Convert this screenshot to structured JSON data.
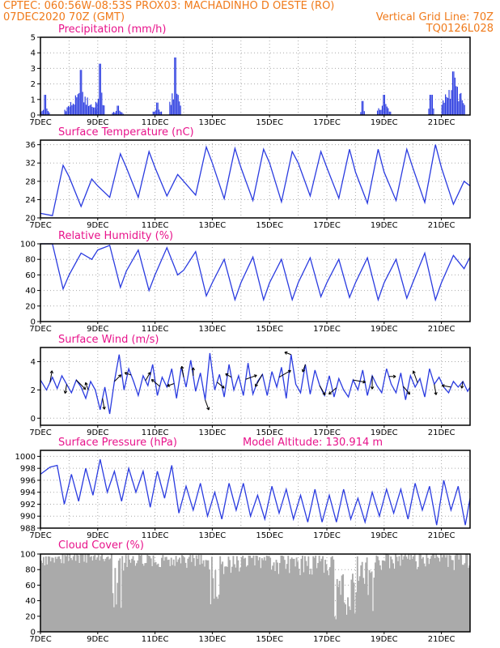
{
  "header": {
    "line1_left": "CPTEC:   060:56W-08:53S   PROX03: MACHADINHO D OESTE (RO)",
    "line2_left": "07DEC2020 70Z (GMT)",
    "line2_right": "Vertical Grid Line: 70Z",
    "line3_right": "TQ0126L028",
    "model_altitude": "Model Altitude: 130.914 m"
  },
  "colors": {
    "header": "#f07a1a",
    "title": "#e8138b",
    "line": "#2a3be0",
    "cloud": "#aaaaaa"
  },
  "chart_data": [
    {
      "id": "precip",
      "type": "bar",
      "title": "Precipitation (mm/h)",
      "ylim": [
        0,
        5
      ],
      "yticks": [
        0,
        1,
        2,
        3,
        4,
        5
      ],
      "x_ticks": [
        "7DEC",
        "9DEC",
        "11DEC",
        "13DEC",
        "15DEC",
        "17DEC",
        "19DEC",
        "21DEC"
      ],
      "x_unit": "hours since 7DEC 00Z",
      "xlim": [
        0,
        360
      ],
      "events": [
        {
          "x": [
            0,
            8
          ],
          "peak": 0.4,
          "max": 1.3
        },
        {
          "x": [
            20,
            48
          ],
          "peak": 1.0,
          "max": 2.9
        },
        {
          "x": [
            46,
            54
          ],
          "peak": 1.5,
          "max": 3.3
        },
        {
          "x": [
            60,
            70
          ],
          "peak": 0.3,
          "max": 0.6
        },
        {
          "x": [
            94,
            102
          ],
          "peak": 0.4,
          "max": 0.8
        },
        {
          "x": [
            108,
            118
          ],
          "peak": 1.6,
          "max": 3.7
        },
        {
          "x": [
            268,
            272
          ],
          "peak": 0.6,
          "max": 0.9
        },
        {
          "x": [
            282,
            294
          ],
          "peak": 0.6,
          "max": 1.3
        },
        {
          "x": [
            325,
            330
          ],
          "peak": 0.8,
          "max": 1.3
        },
        {
          "x": [
            336,
            356
          ],
          "peak": 1.7,
          "max": 2.8
        }
      ]
    },
    {
      "id": "temp",
      "type": "line",
      "title": "Surface Temperature (nC)",
      "ylim": [
        20,
        37
      ],
      "yticks": [
        20,
        24,
        28,
        32,
        36
      ],
      "x_ticks": [
        "7DEC",
        "9DEC",
        "11DEC",
        "13DEC",
        "15DEC",
        "17DEC",
        "19DEC",
        "21DEC"
      ],
      "xlim": [
        0,
        360
      ],
      "x": [
        0,
        10,
        19,
        24,
        34,
        43,
        48,
        58,
        67,
        72,
        82,
        91,
        96,
        106,
        115,
        120,
        130,
        139,
        144,
        154,
        163,
        168,
        178,
        187,
        192,
        202,
        211,
        216,
        226,
        235,
        240,
        250,
        259,
        264,
        274,
        283,
        288,
        298,
        307,
        312,
        322,
        331,
        336,
        346,
        355,
        360
      ],
      "y": [
        21,
        20.5,
        31.5,
        29,
        22.5,
        28.5,
        27,
        24.5,
        34,
        31,
        24.5,
        34.5,
        31,
        24.8,
        29.5,
        28,
        25,
        35.5,
        32,
        24.2,
        35.2,
        31,
        23.8,
        35,
        32,
        23.5,
        34.5,
        32,
        24.8,
        34.5,
        31,
        24.3,
        35,
        30,
        23.2,
        35,
        30,
        23.8,
        35,
        31,
        23.4,
        36,
        31,
        23,
        28,
        27
      ]
    },
    {
      "id": "rh",
      "type": "line",
      "title": "Relative Humidity (%)",
      "ylim": [
        0,
        100
      ],
      "yticks": [
        0,
        20,
        40,
        60,
        80,
        100
      ],
      "x_ticks": [
        "7DEC",
        "9DEC",
        "11DEC",
        "13DEC",
        "15DEC",
        "17DEC",
        "19DEC",
        "21DEC"
      ],
      "xlim": [
        0,
        360
      ],
      "x": [
        0,
        10,
        19,
        24,
        34,
        43,
        48,
        58,
        67,
        72,
        82,
        91,
        96,
        106,
        115,
        120,
        130,
        139,
        144,
        154,
        163,
        168,
        178,
        187,
        192,
        202,
        211,
        216,
        226,
        235,
        240,
        250,
        259,
        264,
        274,
        283,
        288,
        298,
        307,
        312,
        322,
        331,
        336,
        346,
        355,
        360
      ],
      "y": [
        100,
        100,
        42,
        60,
        88,
        80,
        92,
        98,
        44,
        65,
        92,
        40,
        60,
        95,
        60,
        66,
        90,
        33,
        50,
        80,
        28,
        50,
        83,
        28,
        50,
        80,
        28,
        50,
        82,
        32,
        50,
        80,
        31,
        50,
        82,
        28,
        50,
        80,
        30,
        50,
        88,
        28,
        50,
        85,
        68,
        83
      ]
    },
    {
      "id": "wind",
      "type": "line",
      "title": "Surface Wind (m/s)",
      "ylim": [
        -0.5,
        5
      ],
      "yticks": [
        0,
        2,
        4
      ],
      "x_ticks": [
        "7DEC",
        "9DEC",
        "11DEC",
        "13DEC",
        "15DEC",
        "17DEC",
        "19DEC",
        "21DEC"
      ],
      "xlim": [
        0,
        360
      ],
      "x": [
        0,
        5,
        10,
        14,
        18,
        22,
        26,
        30,
        34,
        38,
        42,
        46,
        50,
        54,
        58,
        62,
        66,
        70,
        74,
        78,
        82,
        86,
        90,
        94,
        98,
        102,
        106,
        110,
        114,
        118,
        122,
        126,
        130,
        134,
        138,
        142,
        146,
        150,
        154,
        158,
        162,
        166,
        170,
        174,
        178,
        182,
        186,
        190,
        194,
        198,
        202,
        206,
        210,
        214,
        218,
        222,
        226,
        230,
        234,
        238,
        242,
        246,
        250,
        254,
        258,
        262,
        266,
        270,
        274,
        278,
        282,
        286,
        290,
        294,
        298,
        302,
        306,
        310,
        314,
        318,
        322,
        326,
        330,
        334,
        338,
        342,
        346,
        350,
        354,
        358,
        360
      ],
      "y": [
        2.7,
        2.0,
        2.9,
        2.1,
        3.0,
        2.4,
        1.8,
        2.7,
        2.2,
        1.4,
        2.6,
        2.0,
        0.6,
        2.2,
        0.3,
        2.6,
        4.5,
        2.0,
        3.5,
        2.6,
        1.6,
        3.0,
        2.3,
        3.8,
        1.6,
        2.9,
        2.2,
        3.5,
        1.4,
        3.6,
        2.2,
        4.1,
        1.9,
        3.2,
        1.3,
        4.6,
        2.0,
        3.1,
        1.5,
        3.8,
        2.0,
        3.0,
        1.6,
        3.9,
        1.7,
        2.6,
        3.1,
        1.6,
        3.3,
        2.2,
        3.6,
        1.4,
        4.5,
        2.4,
        1.8,
        3.8,
        1.7,
        3.4,
        2.3,
        1.6,
        3.0,
        1.5,
        2.8,
        2.0,
        1.5,
        2.7,
        2.0,
        3.4,
        1.6,
        3.0,
        2.3,
        1.8,
        3.5,
        2.4,
        1.8,
        3.2,
        1.3,
        3.0,
        2.2,
        2.8,
        1.5,
        3.5,
        2.4,
        2.9,
        2.2,
        1.8,
        2.6,
        2.2,
        2.6,
        1.9,
        2.2
      ],
      "arrows_x": [
        8,
        22,
        30,
        40,
        52,
        62,
        76,
        88,
        100,
        112,
        120,
        128,
        138,
        148,
        160,
        172,
        186,
        200,
        210,
        222,
        234,
        248,
        262,
        278,
        292,
        304,
        316,
        330,
        344,
        354
      ],
      "arrows_dir": [
        80,
        -100,
        -45,
        110,
        -80,
        45,
        160,
        60,
        140,
        -160,
        100,
        90,
        -70,
        -40,
        150,
        20,
        -120,
        30,
        160,
        -110,
        -60,
        -140,
        -10,
        -90,
        0,
        -50,
        110,
        -80,
        170,
        -100
      ]
    },
    {
      "id": "press",
      "type": "line",
      "title": "Surface Pressure (hPa)",
      "ylim": [
        988,
        1001
      ],
      "yticks": [
        988,
        990,
        992,
        994,
        996,
        998,
        1000
      ],
      "x_ticks": [
        "7DEC",
        "9DEC",
        "11DEC",
        "13DEC",
        "15DEC",
        "17DEC",
        "19DEC",
        "21DEC"
      ],
      "xlim": [
        0,
        360
      ],
      "x": [
        0,
        8,
        14,
        20,
        26,
        32,
        38,
        44,
        50,
        56,
        62,
        68,
        74,
        80,
        86,
        92,
        98,
        104,
        110,
        116,
        122,
        128,
        134,
        140,
        146,
        152,
        158,
        164,
        170,
        176,
        182,
        188,
        194,
        200,
        206,
        212,
        218,
        224,
        230,
        236,
        242,
        248,
        254,
        260,
        266,
        272,
        278,
        284,
        290,
        296,
        302,
        308,
        314,
        320,
        326,
        332,
        338,
        344,
        350,
        356,
        360
      ],
      "y": [
        997,
        998.2,
        998.5,
        992,
        997,
        992.5,
        998,
        993.5,
        999.5,
        994,
        997.5,
        992.5,
        998,
        994,
        997.5,
        991.5,
        997.5,
        993,
        998.5,
        990.5,
        995,
        991,
        995.5,
        990,
        994,
        989.5,
        995.5,
        991,
        995.5,
        990,
        993.5,
        989.5,
        995,
        990.5,
        994.5,
        989.5,
        993.5,
        989,
        994.5,
        989,
        993.5,
        989,
        994.5,
        989.5,
        993,
        989,
        994,
        990,
        994.5,
        990.5,
        994.5,
        989.5,
        995.5,
        991,
        995,
        988.5,
        996,
        991,
        995,
        988.5,
        993
      ]
    },
    {
      "id": "cloud",
      "type": "bar",
      "title": "Cloud Cover (%)",
      "ylim": [
        0,
        100
      ],
      "yticks": [
        0,
        20,
        40,
        60,
        80,
        100
      ],
      "x_ticks": [
        "7DEC",
        "9DEC",
        "11DEC",
        "13DEC",
        "15DEC",
        "17DEC",
        "19DEC",
        "21DEC"
      ],
      "xlim": [
        0,
        360
      ],
      "segments": [
        {
          "x": [
            0,
            18
          ],
          "min": 85,
          "max": 97
        },
        {
          "x": [
            18,
            60
          ],
          "min": 88,
          "max": 100
        },
        {
          "x": [
            60,
            70
          ],
          "min": 20,
          "max": 100
        },
        {
          "x": [
            70,
            140
          ],
          "min": 82,
          "max": 99
        },
        {
          "x": [
            140,
            150
          ],
          "min": 30,
          "max": 98
        },
        {
          "x": [
            150,
            245
          ],
          "min": 72,
          "max": 98
        },
        {
          "x": [
            245,
            262
          ],
          "min": 3,
          "max": 95
        },
        {
          "x": [
            262,
            280
          ],
          "min": 20,
          "max": 98
        },
        {
          "x": [
            280,
            360
          ],
          "min": 78,
          "max": 100
        }
      ]
    }
  ]
}
